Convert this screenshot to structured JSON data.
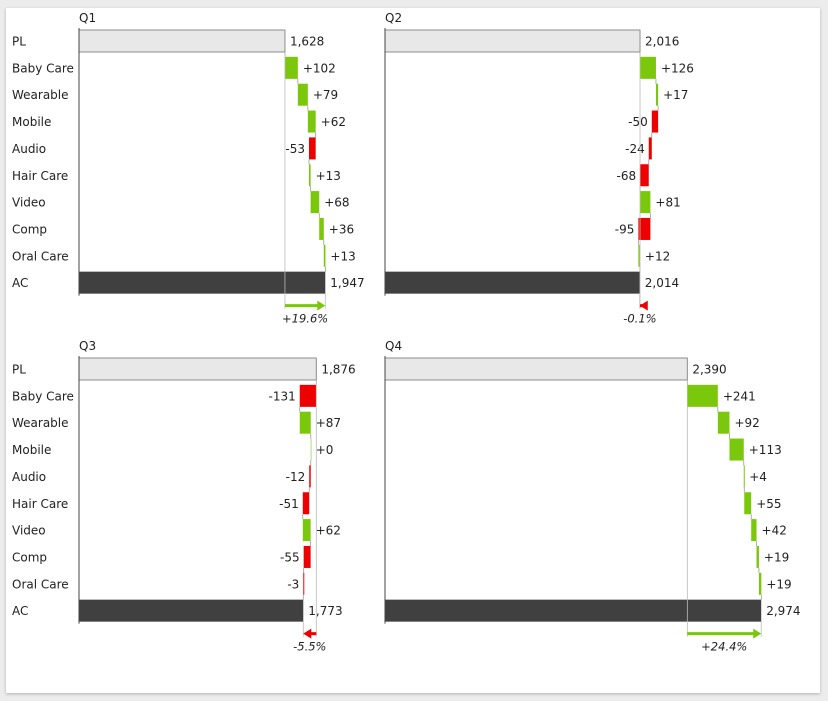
{
  "colors": {
    "positive": "#7ac70c",
    "negative": "#ee0000",
    "plan": "#e8e8e8",
    "plan_border": "#8c8c8c",
    "actual": "#404040",
    "axis": "#444444"
  },
  "chart_data": [
    {
      "type": "bar",
      "title": "Q1",
      "categories": [
        "PL",
        "Baby Care",
        "Wearable",
        "Mobile",
        "Audio",
        "Hair Care",
        "Video",
        "Comp",
        "Oral Care",
        "AC"
      ],
      "values": [
        1628,
        102,
        79,
        62,
        -53,
        13,
        68,
        36,
        13,
        1947
      ],
      "labels": [
        "1,628",
        "+102",
        "+79",
        "+62",
        "-53",
        "+13",
        "+68",
        "+36",
        "+13",
        "1,947"
      ],
      "change_label": "+19.6%",
      "change_sign": "positive"
    },
    {
      "type": "bar",
      "title": "Q2",
      "categories": [
        "PL",
        "Baby Care",
        "Wearable",
        "Mobile",
        "Audio",
        "Hair Care",
        "Video",
        "Comp",
        "Oral Care",
        "AC"
      ],
      "values": [
        2016,
        126,
        17,
        -50,
        -24,
        -68,
        81,
        -95,
        12,
        2014
      ],
      "labels": [
        "2,016",
        "+126",
        "+17",
        "-50",
        "-24",
        "-68",
        "+81",
        "-95",
        "+12",
        "2,014"
      ],
      "change_label": "-0.1%",
      "change_sign": "negative"
    },
    {
      "type": "bar",
      "title": "Q3",
      "categories": [
        "PL",
        "Baby Care",
        "Wearable",
        "Mobile",
        "Audio",
        "Hair Care",
        "Video",
        "Comp",
        "Oral Care",
        "AC"
      ],
      "values": [
        1876,
        -131,
        87,
        0,
        -12,
        -51,
        62,
        -55,
        -3,
        1773
      ],
      "labels": [
        "1,876",
        "-131",
        "+87",
        "+0",
        "-12",
        "-51",
        "+62",
        "-55",
        "-3",
        "1,773"
      ],
      "change_label": "-5.5%",
      "change_sign": "negative"
    },
    {
      "type": "bar",
      "title": "Q4",
      "categories": [
        "PL",
        "Baby Care",
        "Wearable",
        "Mobile",
        "Audio",
        "Hair Care",
        "Video",
        "Comp",
        "Oral Care",
        "AC"
      ],
      "values": [
        2390,
        241,
        92,
        113,
        4,
        55,
        42,
        19,
        19,
        2974
      ],
      "labels": [
        "2,390",
        "+241",
        "+92",
        "+113",
        "+4",
        "+55",
        "+42",
        "+19",
        "+19",
        "2,974"
      ],
      "change_label": "+24.4%",
      "change_sign": "positive"
    }
  ]
}
